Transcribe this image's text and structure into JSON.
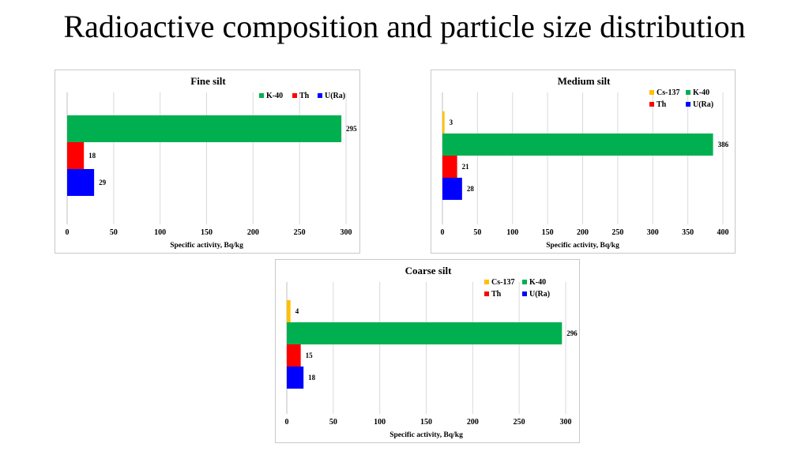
{
  "slide": {
    "title": "Radioactive composition and particle size distribution"
  },
  "chart_data": [
    {
      "type": "bar",
      "orientation": "horizontal",
      "title": "Fine silt",
      "xlabel": "Specific activity, Bq/kg",
      "xlim": [
        0,
        300
      ],
      "xticks": [
        0,
        50,
        100,
        150,
        200,
        250,
        300
      ],
      "grid": true,
      "legend": "top-right",
      "series": [
        {
          "name": "K-40",
          "value": 295,
          "color": "#00b050"
        },
        {
          "name": "Th",
          "value": 18,
          "color": "#ff0000"
        },
        {
          "name": "U(Ra)",
          "value": 29,
          "color": "#0000ff"
        }
      ]
    },
    {
      "type": "bar",
      "orientation": "horizontal",
      "title": "Medium silt",
      "xlabel": "Specific activity, Bq/kg",
      "xlim": [
        0,
        400
      ],
      "xticks": [
        0,
        50,
        100,
        150,
        200,
        250,
        300,
        350,
        400
      ],
      "grid": true,
      "legend": "top-right",
      "series": [
        {
          "name": "Cs-137",
          "value": 3,
          "color": "#ffc000"
        },
        {
          "name": "K-40",
          "value": 386,
          "color": "#00b050"
        },
        {
          "name": "Th",
          "value": 21,
          "color": "#ff0000"
        },
        {
          "name": "U(Ra)",
          "value": 28,
          "color": "#0000ff"
        }
      ]
    },
    {
      "type": "bar",
      "orientation": "horizontal",
      "title": "Coarse silt",
      "xlabel": "Specific activity, Bq/kg",
      "xlim": [
        0,
        300
      ],
      "xticks": [
        0,
        50,
        100,
        150,
        200,
        250,
        300
      ],
      "grid": true,
      "legend": "top-right",
      "series": [
        {
          "name": "Cs-137",
          "value": 4,
          "color": "#ffc000"
        },
        {
          "name": "K-40",
          "value": 296,
          "color": "#00b050"
        },
        {
          "name": "Th",
          "value": 15,
          "color": "#ff0000"
        },
        {
          "name": "U(Ra)",
          "value": 18,
          "color": "#0000ff"
        }
      ]
    }
  ]
}
